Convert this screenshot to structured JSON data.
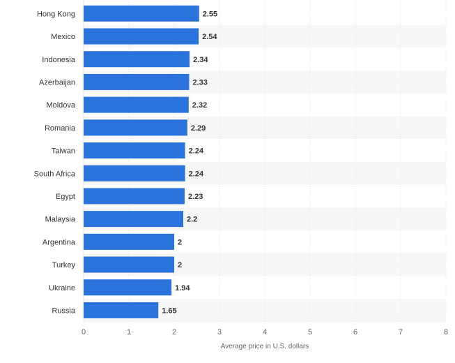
{
  "chart_data": {
    "type": "bar",
    "orientation": "horizontal",
    "categories": [
      "Hong Kong",
      "Mexico",
      "Indonesia",
      "Azerbaijan",
      "Moldova",
      "Romania",
      "Taiwan",
      "South Africa",
      "Egypt",
      "Malaysia",
      "Argentina",
      "Turkey",
      "Ukraine",
      "Russia"
    ],
    "values": [
      2.55,
      2.54,
      2.34,
      2.33,
      2.32,
      2.29,
      2.24,
      2.24,
      2.23,
      2.2,
      2,
      2,
      1.94,
      1.65
    ],
    "value_labels": [
      "2.55",
      "2.54",
      "2.34",
      "2.33",
      "2.32",
      "2.29",
      "2.24",
      "2.24",
      "2.23",
      "2.2",
      "2",
      "2",
      "1.94",
      "1.65"
    ],
    "xlabel": "Average price in U.S. dollars",
    "ylabel": "",
    "xlim": [
      0,
      8
    ],
    "xticks": [
      "0",
      "1",
      "2",
      "3",
      "4",
      "5",
      "6",
      "7",
      "8"
    ],
    "bar_color": "#2a73dd",
    "stripe_color": "#f7f7f7",
    "grid": true,
    "legend": "none"
  }
}
